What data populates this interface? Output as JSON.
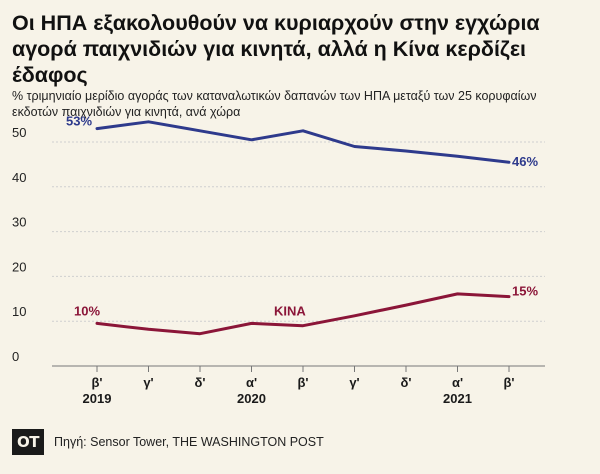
{
  "header": {
    "title": "Οι ΗΠΑ εξακολουθούν να κυριαρχούν στην εγχώρια αγορά παιχνιδιών για κινητά, αλλά η Κίνα κερδίζει έδαφος",
    "subtitle": "% τριμηνιαίο μερίδιο αγοράς των καταναλωτικών δαπανών των ΗΠΑ μεταξύ των 25 κορυφαίων εκδοτών παιχνιδιών για κινητά, ανά χώρα"
  },
  "footer": {
    "logo": "OT",
    "source": "Πηγή: Sensor Tower, THE WASHINGTON POST"
  },
  "chart_data": {
    "type": "line",
    "title": "Οι ΗΠΑ εξακολουθούν να κυριαρχούν στην εγχώρια αγορά παιχνιδιών για κινητά, αλλά η Κίνα κερδίζει έδαφος",
    "subtitle": "% τριμηνιαίο μερίδιο αγοράς των καταναλωτικών δαπανών των ΗΠΑ μεταξύ των 25 κορυφαίων εκδοτών παιχνιδιών για κινητά, ανά χώρα",
    "categories": [
      "β'",
      "γ'",
      "δ'",
      "α'",
      "β'",
      "γ'",
      "δ'",
      "α'",
      "β'"
    ],
    "year_labels": [
      {
        "index": 0,
        "label": "2019"
      },
      {
        "index": 3,
        "label": "2020"
      },
      {
        "index": 7,
        "label": "2021"
      }
    ],
    "ylim": [
      0,
      55
    ],
    "yticks": [
      0,
      10,
      20,
      30,
      40,
      50
    ],
    "grid": true,
    "series": [
      {
        "values": [
          53,
          54.5,
          52.5,
          50.5,
          52.5,
          49,
          48,
          46.8,
          45.5
        ],
        "color": "#2e3a8c",
        "start_label": "53%",
        "end_label": "46%"
      },
      {
        "name": "ΚΙΝΑ",
        "values": [
          9.5,
          8.2,
          7.2,
          9.5,
          9,
          11.2,
          13.6,
          16.1,
          15.5
        ],
        "color": "#8b1538",
        "start_label": "10%",
        "end_label": "15%"
      }
    ]
  }
}
